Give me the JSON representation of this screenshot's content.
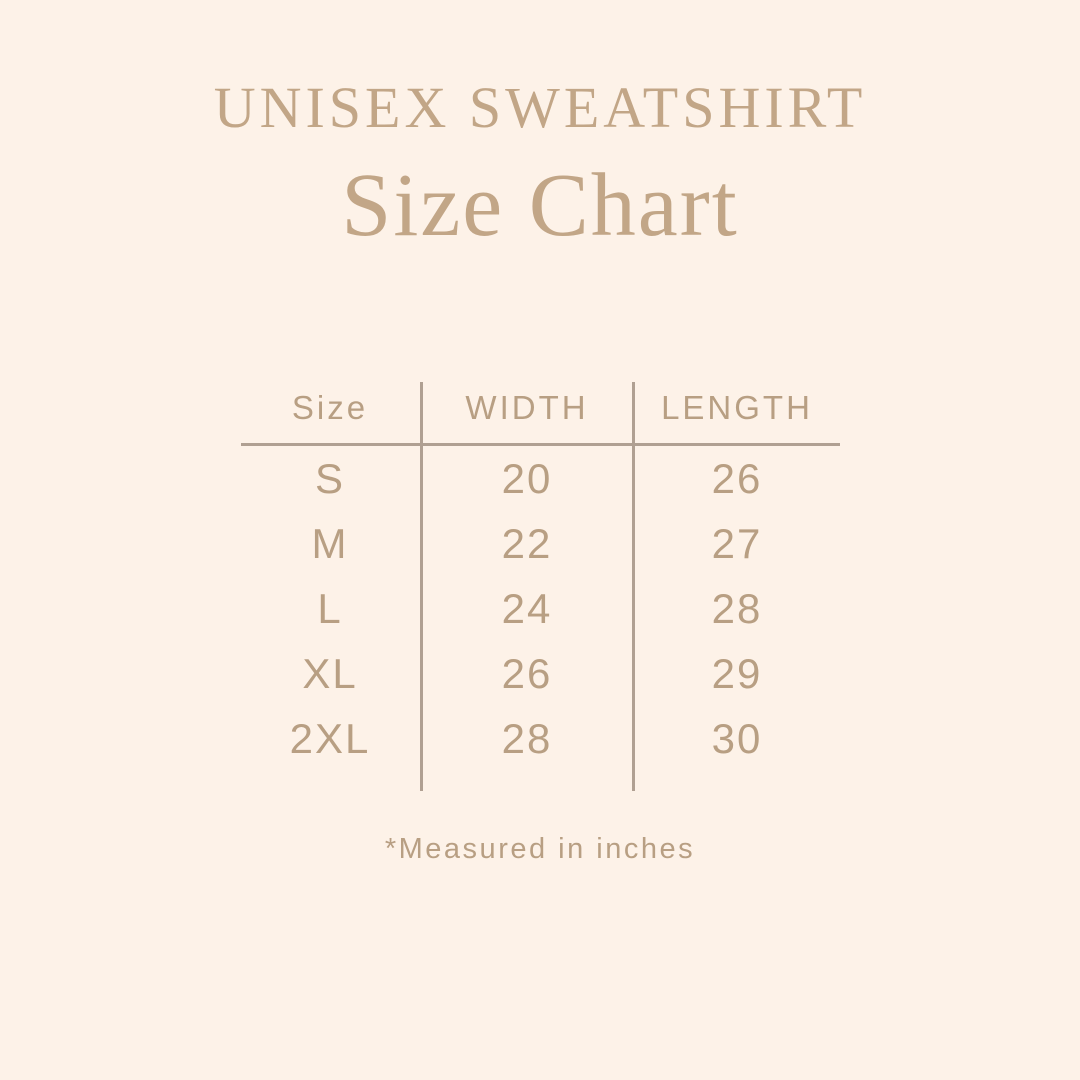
{
  "title": {
    "line1": "UNISEX SWEATSHIRT",
    "line2": "Size Chart"
  },
  "footnote": "*Measured in inches",
  "colors": {
    "background": "#fdf2e8",
    "heading": "#c2a687",
    "table_text": "#b89f83",
    "line": "#b0a092"
  },
  "chart_data": {
    "type": "table",
    "title": "UNISEX SWEATSHIRT Size Chart",
    "columns": [
      "Size",
      "WIDTH",
      "LENGTH"
    ],
    "rows": [
      [
        "S",
        "20",
        "26"
      ],
      [
        "M",
        "22",
        "27"
      ],
      [
        "L",
        "24",
        "28"
      ],
      [
        "XL",
        "26",
        "29"
      ],
      [
        "2XL",
        "28",
        "30"
      ]
    ],
    "units_note": "*Measured in inches"
  }
}
